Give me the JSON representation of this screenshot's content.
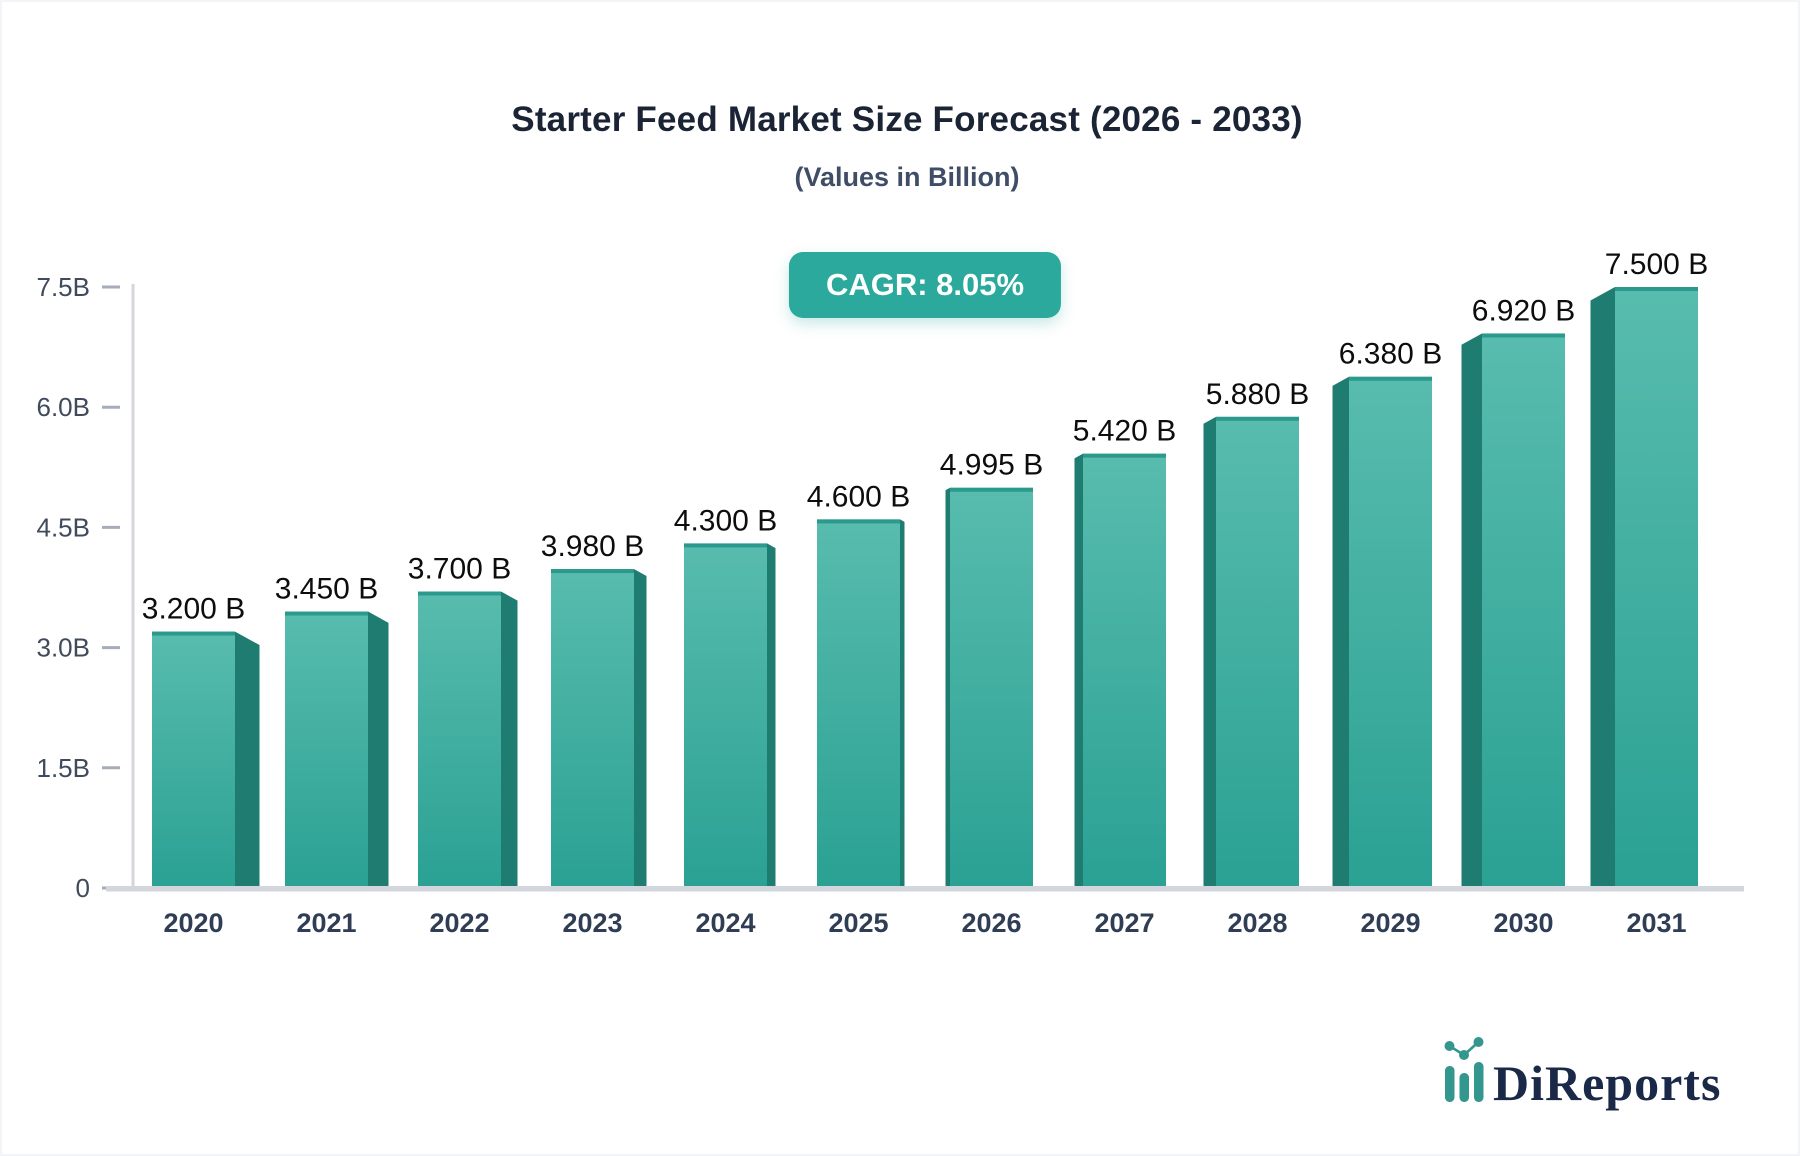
{
  "header": {
    "title": "Starter Feed Market Size Forecast (2026 - 2033)",
    "subtitle": "(Values in Billion)",
    "cagr_label": "CAGR: 8.05%"
  },
  "chart_data": {
    "type": "bar",
    "title": "Starter Feed Market Size Forecast (2026 - 2033)",
    "subtitle": "(Values in Billion)",
    "categories": [
      "2020",
      "2021",
      "2022",
      "2023",
      "2024",
      "2025",
      "2026",
      "2027",
      "2028",
      "2029",
      "2030",
      "2031"
    ],
    "values": [
      3.2,
      3.45,
      3.7,
      3.98,
      4.3,
      4.6,
      4.995,
      5.42,
      5.88,
      6.38,
      6.92,
      7.5
    ],
    "value_labels": [
      "3.200 B",
      "3.450 B",
      "3.700 B",
      "3.980 B",
      "4.300 B",
      "4.600 B",
      "4.995 B",
      "5.420 B",
      "5.880 B",
      "6.380 B",
      "6.920 B",
      "7.500 B"
    ],
    "unit": "Billion",
    "cagr": "8.05%",
    "ylim": [
      0,
      7.5
    ],
    "yticks": [
      {
        "value": 0,
        "label": "0"
      },
      {
        "value": 1.5,
        "label": "1.5B"
      },
      {
        "value": 3.0,
        "label": "3.0B"
      },
      {
        "value": 4.5,
        "label": "4.5B"
      },
      {
        "value": 6.0,
        "label": "6.0B"
      },
      {
        "value": 7.5,
        "label": "7.5B"
      }
    ],
    "grid": false,
    "legend": "none",
    "bar_style": "3d-perspective"
  },
  "colors": {
    "bar_top": "#58bcae",
    "bar_bottom": "#2aa193",
    "bar_side": "#1e7c70",
    "bar_top_edge": "#2b9a8d",
    "badge_bg": "#2aa99c",
    "axis_line": "#d3d6dc",
    "tick": "#a6adb8",
    "ytick_text": "#3f4a5c",
    "xtick_text": "#2f3d55",
    "value_text": "#0d0d0d",
    "logo_navy": "#1a2947",
    "logo_teal": "#33968f"
  },
  "logo": {
    "text": "DiReports"
  }
}
